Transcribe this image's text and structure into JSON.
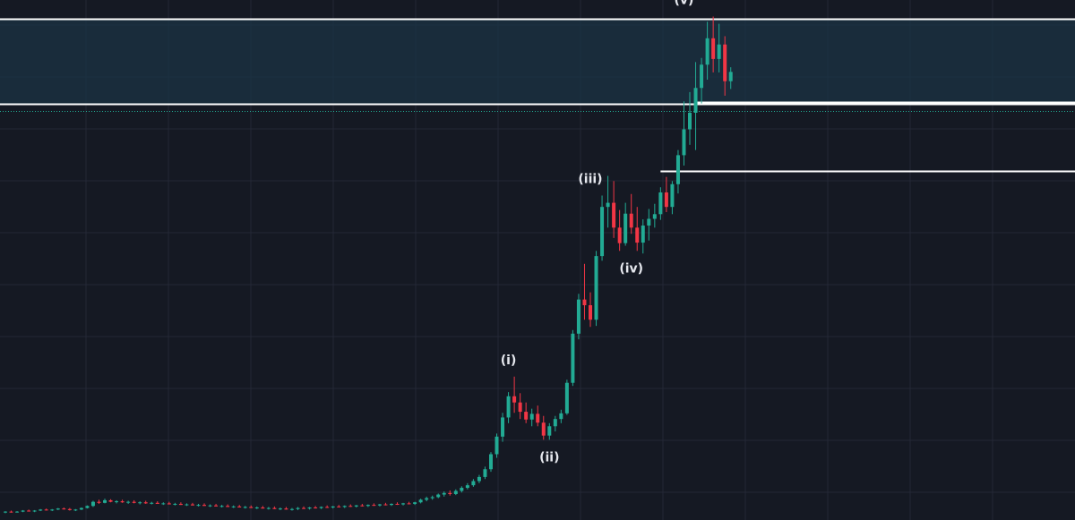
{
  "chart_data": {
    "type": "candlestick",
    "title": "",
    "xlabel": "",
    "ylabel": "",
    "grid": true,
    "colors": {
      "background": "#151923",
      "grid": "#232836",
      "up": "#22ab94",
      "down": "#f23645",
      "level_line": "#ffffff",
      "zone_fill": "#1b3344",
      "dotted_level": "#22ab94"
    },
    "y_range": [
      0,
      100
    ],
    "candles": [
      [
        1.0,
        1.2,
        0.8,
        1.1
      ],
      [
        1.1,
        1.3,
        0.9,
        1.0
      ],
      [
        1.0,
        1.2,
        0.9,
        1.1
      ],
      [
        1.1,
        1.4,
        1.0,
        1.3
      ],
      [
        1.3,
        1.5,
        1.1,
        1.2
      ],
      [
        1.2,
        1.4,
        1.0,
        1.3
      ],
      [
        1.3,
        1.6,
        1.2,
        1.5
      ],
      [
        1.5,
        1.7,
        1.3,
        1.4
      ],
      [
        1.4,
        1.6,
        1.2,
        1.5
      ],
      [
        1.5,
        1.8,
        1.4,
        1.7
      ],
      [
        1.7,
        1.9,
        1.5,
        1.6
      ],
      [
        1.6,
        1.8,
        1.3,
        1.4
      ],
      [
        1.4,
        1.6,
        1.2,
        1.5
      ],
      [
        1.5,
        1.9,
        1.4,
        1.8
      ],
      [
        1.8,
        2.3,
        1.7,
        2.2
      ],
      [
        2.2,
        3.2,
        2.0,
        3.0
      ],
      [
        3.0,
        3.4,
        2.6,
        2.8
      ],
      [
        2.8,
        3.6,
        2.7,
        3.3
      ],
      [
        3.3,
        3.5,
        2.9,
        3.0
      ],
      [
        3.0,
        3.3,
        2.7,
        3.1
      ],
      [
        3.1,
        3.4,
        2.8,
        2.9
      ],
      [
        2.9,
        3.2,
        2.6,
        3.0
      ],
      [
        3.0,
        3.3,
        2.7,
        2.8
      ],
      [
        2.8,
        3.1,
        2.5,
        2.9
      ],
      [
        2.9,
        3.2,
        2.6,
        2.7
      ],
      [
        2.7,
        3.0,
        2.5,
        2.8
      ],
      [
        2.8,
        3.1,
        2.6,
        2.6
      ],
      [
        2.6,
        2.9,
        2.4,
        2.7
      ],
      [
        2.7,
        3.0,
        2.5,
        2.5
      ],
      [
        2.5,
        2.8,
        2.3,
        2.6
      ],
      [
        2.6,
        2.9,
        2.4,
        2.4
      ],
      [
        2.4,
        2.7,
        2.2,
        2.5
      ],
      [
        2.5,
        2.8,
        2.3,
        2.3
      ],
      [
        2.3,
        2.6,
        2.1,
        2.4
      ],
      [
        2.4,
        2.7,
        2.2,
        2.2
      ],
      [
        2.2,
        2.5,
        2.0,
        2.3
      ],
      [
        2.3,
        2.6,
        2.1,
        2.1
      ],
      [
        2.1,
        2.4,
        1.9,
        2.2
      ],
      [
        2.2,
        2.5,
        2.0,
        2.0
      ],
      [
        2.0,
        2.3,
        1.8,
        2.1
      ],
      [
        2.1,
        2.4,
        1.9,
        1.9
      ],
      [
        1.9,
        2.2,
        1.7,
        2.0
      ],
      [
        2.0,
        2.3,
        1.8,
        1.8
      ],
      [
        1.8,
        2.1,
        1.6,
        1.9
      ],
      [
        1.9,
        2.2,
        1.7,
        1.7
      ],
      [
        1.7,
        2.0,
        1.5,
        1.8
      ],
      [
        1.8,
        2.1,
        1.6,
        1.6
      ],
      [
        1.6,
        1.9,
        1.4,
        1.7
      ],
      [
        1.7,
        2.0,
        1.5,
        1.5
      ],
      [
        1.5,
        1.8,
        1.3,
        1.6
      ],
      [
        1.6,
        2.0,
        1.4,
        1.8
      ],
      [
        1.8,
        2.1,
        1.6,
        1.7
      ],
      [
        1.7,
        2.0,
        1.5,
        1.9
      ],
      [
        1.9,
        2.2,
        1.7,
        1.8
      ],
      [
        1.8,
        2.1,
        1.6,
        2.0
      ],
      [
        2.0,
        2.3,
        1.8,
        1.9
      ],
      [
        1.9,
        2.2,
        1.7,
        2.1
      ],
      [
        2.1,
        2.4,
        1.9,
        2.0
      ],
      [
        2.0,
        2.3,
        1.8,
        2.2
      ],
      [
        2.2,
        2.5,
        2.0,
        2.1
      ],
      [
        2.1,
        2.4,
        1.9,
        2.3
      ],
      [
        2.3,
        2.6,
        2.1,
        2.2
      ],
      [
        2.2,
        2.5,
        2.0,
        2.4
      ],
      [
        2.4,
        2.7,
        2.2,
        2.3
      ],
      [
        2.3,
        2.6,
        2.1,
        2.5
      ],
      [
        2.5,
        2.8,
        2.3,
        2.4
      ],
      [
        2.4,
        2.7,
        2.2,
        2.6
      ],
      [
        2.6,
        2.9,
        2.4,
        2.5
      ],
      [
        2.5,
        2.8,
        2.3,
        2.7
      ],
      [
        2.7,
        3.0,
        2.5,
        2.6
      ],
      [
        2.6,
        3.0,
        2.4,
        2.9
      ],
      [
        2.9,
        3.6,
        2.7,
        3.4
      ],
      [
        3.4,
        4.0,
        3.1,
        3.7
      ],
      [
        3.7,
        4.2,
        3.4,
        3.9
      ],
      [
        3.9,
        4.6,
        3.7,
        4.4
      ],
      [
        4.4,
        5.0,
        4.0,
        4.7
      ],
      [
        4.7,
        5.2,
        4.2,
        4.5
      ],
      [
        4.5,
        5.4,
        4.3,
        5.1
      ],
      [
        5.1,
        6.0,
        4.8,
        5.7
      ],
      [
        5.7,
        6.6,
        5.4,
        6.2
      ],
      [
        6.2,
        7.4,
        5.9,
        7.0
      ],
      [
        7.0,
        8.2,
        6.6,
        7.8
      ],
      [
        7.8,
        9.8,
        7.4,
        9.3
      ],
      [
        9.3,
        12.6,
        8.8,
        12.2
      ],
      [
        12.2,
        16.2,
        11.5,
        15.6
      ],
      [
        15.6,
        20.2,
        14.6,
        19.3
      ],
      [
        19.3,
        24.2,
        18.2,
        23.4
      ],
      [
        23.4,
        27.2,
        20.2,
        22.2
      ],
      [
        22.2,
        24.0,
        19.0,
        20.4
      ],
      [
        20.4,
        22.2,
        18.2,
        18.9
      ],
      [
        18.9,
        21.0,
        17.6,
        20.0
      ],
      [
        20.0,
        21.6,
        17.6,
        18.3
      ],
      [
        18.3,
        19.6,
        15.0,
        15.8
      ],
      [
        15.8,
        18.2,
        15.0,
        17.6
      ],
      [
        17.6,
        19.6,
        16.6,
        19.0
      ],
      [
        19.0,
        20.8,
        18.2,
        20.1
      ],
      [
        20.1,
        26.6,
        19.8,
        26.0
      ],
      [
        26.0,
        36.2,
        25.4,
        35.5
      ],
      [
        35.5,
        43.2,
        34.4,
        42.1
      ],
      [
        42.1,
        49.0,
        38.2,
        41.0
      ],
      [
        41.0,
        43.5,
        36.8,
        38.2
      ],
      [
        38.2,
        51.5,
        37.0,
        50.5
      ],
      [
        50.5,
        62.2,
        49.6,
        60.0
      ],
      [
        60.0,
        66.0,
        56.0,
        60.8
      ],
      [
        60.8,
        65.0,
        54.0,
        56.0
      ],
      [
        56.0,
        59.4,
        51.5,
        53.0
      ],
      [
        53.0,
        60.8,
        52.5,
        58.7
      ],
      [
        58.7,
        62.5,
        54.8,
        56.0
      ],
      [
        56.0,
        60.0,
        51.5,
        53.1
      ],
      [
        53.1,
        57.6,
        51.0,
        56.4
      ],
      [
        56.4,
        59.6,
        53.5,
        57.7
      ],
      [
        57.7,
        60.6,
        56.0,
        58.6
      ],
      [
        58.6,
        63.8,
        57.5,
        62.8
      ],
      [
        62.8,
        65.8,
        59.0,
        60.0
      ],
      [
        60.0,
        65.0,
        58.6,
        64.4
      ],
      [
        64.4,
        71.0,
        62.6,
        70.0
      ],
      [
        70.0,
        80.4,
        68.0,
        75.0
      ],
      [
        75.0,
        82.2,
        72.0,
        78.2
      ],
      [
        78.2,
        88.0,
        71.0,
        83.0
      ],
      [
        83.0,
        88.8,
        80.0,
        87.5
      ],
      [
        87.5,
        95.8,
        84.6,
        92.6
      ],
      [
        92.6,
        96.8,
        86.0,
        88.6
      ],
      [
        88.6,
        95.4,
        86.0,
        91.4
      ],
      [
        91.4,
        93.0,
        81.5,
        84.3
      ],
      [
        84.3,
        87.0,
        82.8,
        86.1
      ]
    ],
    "annotations": [
      {
        "text": "(i)",
        "candle": 86,
        "price": 27.2
      },
      {
        "text": "(ii)",
        "candle": 93,
        "price": 15.0
      },
      {
        "text": "(iii)",
        "candle": 100,
        "price": 62.2
      },
      {
        "text": "(iv)",
        "candle": 107,
        "price": 51.5
      },
      {
        "text": "(v)",
        "candle": 116,
        "price": 96.8
      }
    ],
    "levels": [
      {
        "price": 96.3,
        "from": "left",
        "style": "solid"
      },
      {
        "price": 79.9,
        "from": "left",
        "style": "solid"
      },
      {
        "price": 78.5,
        "from": "left",
        "style": "dotted"
      },
      {
        "price": 80.2,
        "from": "candle:118",
        "style": "solid"
      },
      {
        "price": 67.0,
        "from": "candle:112",
        "style": "solid"
      }
    ],
    "zone": {
      "from": 79.9,
      "to": 96.3
    }
  }
}
